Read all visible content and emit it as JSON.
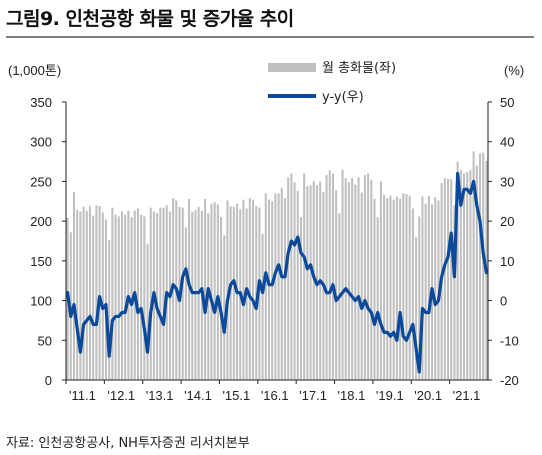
{
  "title": "그림9. 인천공항 화물 및 증가율 추이",
  "source": "자료: 인천공항공사, NH투자증권 리서치본부",
  "chart_data": {
    "type": "bar+line",
    "left_axis_unit": "(1,000톤)",
    "right_axis_unit": "(%)",
    "left_ylim": [
      0,
      350
    ],
    "left_ticks": [
      0,
      50,
      100,
      150,
      200,
      250,
      300,
      350
    ],
    "right_ylim": [
      -20,
      50
    ],
    "right_ticks": [
      -20,
      -10,
      0,
      10,
      20,
      30,
      40,
      50
    ],
    "x_tick_labels": [
      "'11.1",
      "'12.1",
      "'13.1",
      "'14.1",
      "'15.1",
      "'16.1",
      "'17.1",
      "'18.1",
      "'19.1",
      "'20.1",
      "'21.1"
    ],
    "months_per_label": 12,
    "colors": {
      "bar": "#bfbfbf",
      "line": "#0b4a9a"
    },
    "series": [
      {
        "name": "월 총화물(좌)",
        "axis": "left",
        "values": [
          204,
          186,
          237,
          214,
          212,
          218,
          213,
          219,
          207,
          220,
          219,
          211,
          202,
          176,
          217,
          208,
          206,
          212,
          208,
          213,
          205,
          213,
          216,
          208,
          206,
          171,
          217,
          212,
          210,
          217,
          217,
          220,
          212,
          229,
          226,
          218,
          217,
          192,
          228,
          212,
          214,
          218,
          213,
          228,
          210,
          222,
          224,
          221,
          205,
          182,
          226,
          219,
          218,
          222,
          215,
          227,
          216,
          229,
          227,
          219,
          217,
          184,
          235,
          227,
          225,
          235,
          235,
          242,
          229,
          255,
          260,
          249,
          238,
          205,
          260,
          244,
          245,
          250,
          245,
          250,
          237,
          258,
          264,
          260,
          239,
          210,
          265,
          254,
          249,
          254,
          246,
          255,
          236,
          258,
          260,
          252,
          228,
          205,
          250,
          233,
          229,
          232,
          227,
          231,
          228,
          235,
          234,
          232,
          216,
          180,
          206,
          231,
          222,
          232,
          221,
          230,
          226,
          248,
          254,
          253,
          253,
          220,
          275,
          264,
          260,
          262,
          264,
          288,
          270,
          285,
          286,
          276
        ]
      },
      {
        "name": "y-y(우)",
        "axis": "right",
        "values": [
          2,
          -4,
          -1,
          -7,
          -13,
          -6,
          -5,
          -4,
          -6,
          -6,
          1,
          -2,
          -1,
          -14,
          -5,
          -4,
          -4,
          -3,
          -3,
          1,
          -1,
          2,
          -3,
          -2,
          -7,
          -13,
          -3,
          2,
          -2,
          -4,
          -6,
          2,
          1,
          4,
          3,
          0,
          6,
          8,
          4,
          2,
          2,
          2,
          3,
          -3,
          3,
          0,
          -3,
          1,
          -3,
          -8,
          0,
          4,
          5,
          2,
          2,
          -1,
          3,
          1,
          0,
          -2,
          5,
          2,
          7,
          4,
          4,
          7,
          9,
          6,
          6,
          12,
          15,
          14,
          16,
          12,
          11,
          8,
          9,
          6,
          4,
          5,
          4,
          2,
          2,
          4,
          0,
          1,
          2,
          3,
          2,
          1,
          0,
          1,
          -2,
          0,
          -2,
          -3,
          -6,
          -3,
          -6,
          -8,
          -8,
          -9,
          -8,
          -10,
          -3,
          -9,
          -10,
          -8,
          -6,
          -12,
          -18,
          -2,
          -3,
          -3,
          3,
          -1,
          0,
          6,
          9,
          11,
          17,
          6,
          32,
          24,
          28,
          28,
          27,
          30,
          24,
          20,
          12,
          7
        ],
        "values_note": ""
      }
    ]
  }
}
